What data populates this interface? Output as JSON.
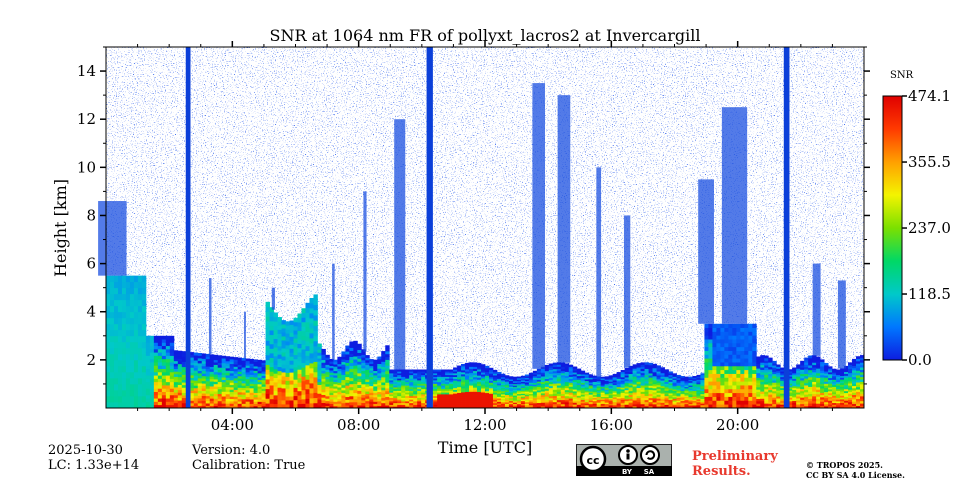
{
  "chart_data": {
    "type": "heatmap",
    "title": "SNR at 1064 nm FR of pollyxt_lacros2 at Invercargill",
    "xlabel": "Time [UTC]",
    "ylabel": "Height [km]",
    "xlim_hours": [
      0,
      24
    ],
    "ylim_km": [
      0,
      15
    ],
    "xticks": [
      {
        "hour": 4,
        "label": "04:00"
      },
      {
        "hour": 8,
        "label": "08:00"
      },
      {
        "hour": 12,
        "label": "12:00"
      },
      {
        "hour": 16,
        "label": "16:00"
      },
      {
        "hour": 20,
        "label": "20:00"
      }
    ],
    "yticks": [
      {
        "value": 2,
        "label": "2"
      },
      {
        "value": 4,
        "label": "4"
      },
      {
        "value": 6,
        "label": "6"
      },
      {
        "value": 8,
        "label": "8"
      },
      {
        "value": 10,
        "label": "10"
      },
      {
        "value": 12,
        "label": "12"
      },
      {
        "value": 14,
        "label": "14"
      }
    ],
    "colorbar": {
      "label": "SNR",
      "range": [
        0.0,
        474.1
      ],
      "ticks": [
        {
          "value": 0.0,
          "label": "0.0"
        },
        {
          "value": 118.5,
          "label": "118.5"
        },
        {
          "value": 237.0,
          "label": "237.0"
        },
        {
          "value": 355.5,
          "label": "355.5"
        },
        {
          "value": 474.1,
          "label": "474.1"
        }
      ],
      "colormap": [
        "#0d1de0",
        "#0077ff",
        "#00c9c9",
        "#00d866",
        "#7be000",
        "#f4f400",
        "#ffa000",
        "#ff3a00",
        "#e00000"
      ]
    },
    "vertical_bands_hours": [
      {
        "center": 2.6,
        "width": 0.15
      },
      {
        "center": 10.25,
        "width": 0.2
      },
      {
        "center": 21.55,
        "width": 0.18
      }
    ]
  },
  "footer": {
    "date": "2025-10-30",
    "lc": "LC: 1.33e+14",
    "version": "Version: 4.0",
    "calibration": "Calibration: True",
    "preliminary_line1": "Preliminary",
    "preliminary_line2": "Results.",
    "copyright_line1": "© TROPOS 2025.",
    "copyright_line2": "CC BY SA 4.0 License.",
    "license_badge": {
      "cc": "cc",
      "by": "BY",
      "sa": "SA"
    }
  }
}
